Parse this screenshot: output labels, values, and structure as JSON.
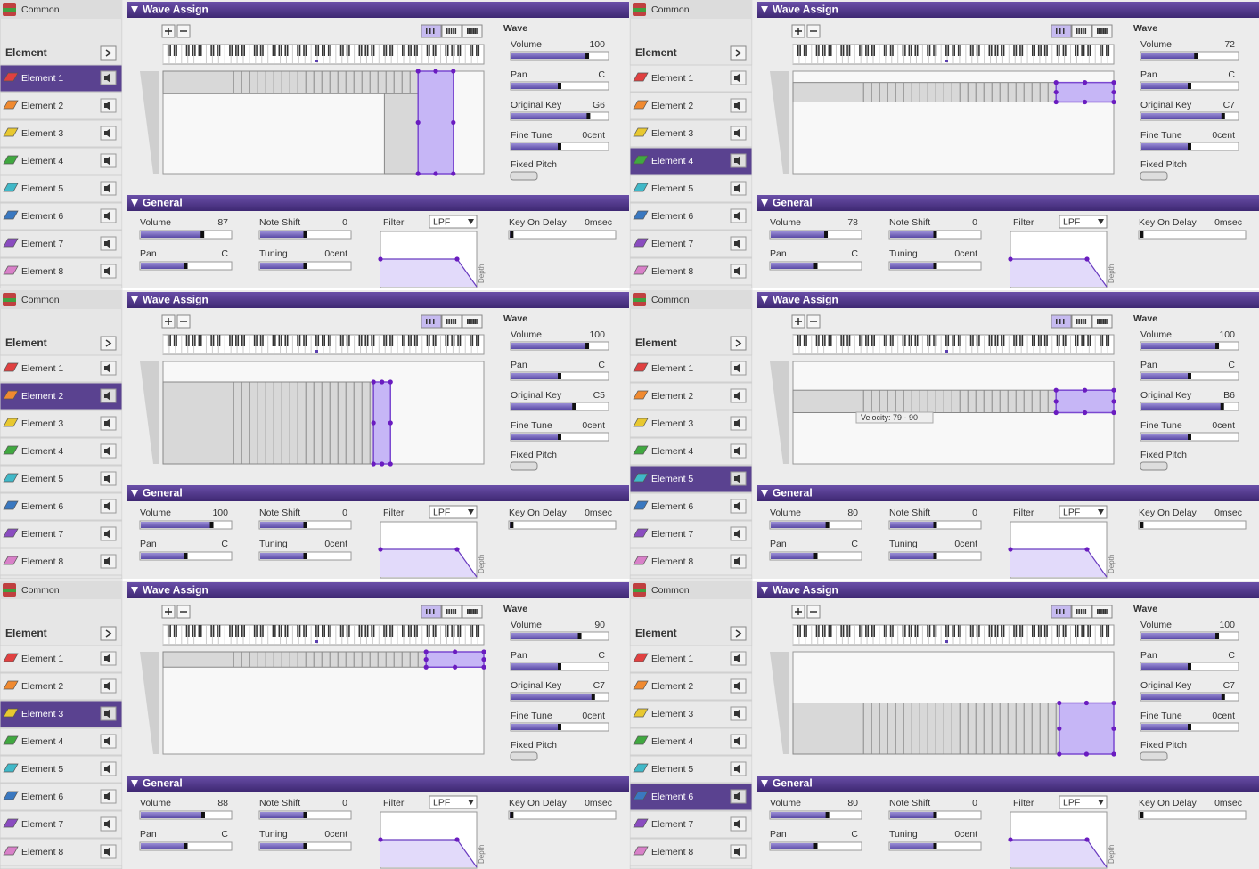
{
  "panels": [
    {
      "common": "Common",
      "element_header": "Element",
      "elements": [
        "Element 1",
        "Element 2",
        "Element 3",
        "Element 4",
        "Element 5",
        "Element 6",
        "Element 7",
        "Element 8"
      ],
      "selected": 0,
      "wave": {
        "title": "Wave Assign",
        "heading": "Wave",
        "volume_label": "Volume",
        "volume": 100,
        "pan_label": "Pan",
        "pan": "C",
        "key_label": "Original Key",
        "key": "G6",
        "fine_tune_label": "Fine Tune",
        "fine_tune": "0cent",
        "fixed_pitch_label": "Fixed Pitch"
      },
      "general": {
        "title": "General",
        "volume_label": "Volume",
        "volume": 87,
        "note_shift_label": "Note Shift",
        "note_shift": 0,
        "filter_label": "Filter",
        "filter": "LPF",
        "key_on_delay_label": "Key On Delay",
        "key_on_delay": "0msec",
        "pan_label": "Pan",
        "pan": "C",
        "tuning_label": "Tuning",
        "tuning": "0cent",
        "depth_label": "Depth"
      }
    },
    {
      "common": "Common",
      "element_header": "Element",
      "elements": [
        "Element 1",
        "Element 2",
        "Element 3",
        "Element 4",
        "Element 5",
        "Element 6",
        "Element 7",
        "Element 8"
      ],
      "selected": 3,
      "wave": {
        "title": "Wave Assign",
        "heading": "Wave",
        "volume_label": "Volume",
        "volume": 72,
        "pan_label": "Pan",
        "pan": "C",
        "key_label": "Original Key",
        "key": "C7",
        "fine_tune_label": "Fine Tune",
        "fine_tune": "0cent",
        "fixed_pitch_label": "Fixed Pitch"
      },
      "general": {
        "title": "General",
        "volume_label": "Volume",
        "volume": 78,
        "note_shift_label": "Note Shift",
        "note_shift": 0,
        "filter_label": "Filter",
        "filter": "LPF",
        "key_on_delay_label": "Key On Delay",
        "key_on_delay": "0msec",
        "pan_label": "Pan",
        "pan": "C",
        "tuning_label": "Tuning",
        "tuning": "0cent",
        "depth_label": "Depth"
      }
    },
    {
      "common": "Common",
      "element_header": "Element",
      "elements": [
        "Element 1",
        "Element 2",
        "Element 3",
        "Element 4",
        "Element 5",
        "Element 6",
        "Element 7",
        "Element 8"
      ],
      "selected": 1,
      "wave": {
        "title": "Wave Assign",
        "heading": "Wave",
        "volume_label": "Volume",
        "volume": 100,
        "pan_label": "Pan",
        "pan": "C",
        "key_label": "Original Key",
        "key": "C5",
        "fine_tune_label": "Fine Tune",
        "fine_tune": "0cent",
        "fixed_pitch_label": "Fixed Pitch"
      },
      "general": {
        "title": "General",
        "volume_label": "Volume",
        "volume": 100,
        "note_shift_label": "Note Shift",
        "note_shift": 0,
        "filter_label": "Filter",
        "filter": "LPF",
        "key_on_delay_label": "Key On Delay",
        "key_on_delay": "0msec",
        "pan_label": "Pan",
        "pan": "C",
        "tuning_label": "Tuning",
        "tuning": "0cent",
        "depth_label": "Depth"
      }
    },
    {
      "common": "Common",
      "element_header": "Element",
      "elements": [
        "Element 1",
        "Element 2",
        "Element 3",
        "Element 4",
        "Element 5",
        "Element 6",
        "Element 7",
        "Element 8"
      ],
      "selected": 4,
      "wave": {
        "title": "Wave Assign",
        "heading": "Wave",
        "volume_label": "Volume",
        "volume": 100,
        "pan_label": "Pan",
        "pan": "C",
        "key_label": "Original Key",
        "key": "B6",
        "fine_tune_label": "Fine Tune",
        "fine_tune": "0cent",
        "fixed_pitch_label": "Fixed Pitch",
        "tooltip": "Velocity: 79 - 90"
      },
      "general": {
        "title": "General",
        "volume_label": "Volume",
        "volume": 80,
        "note_shift_label": "Note Shift",
        "note_shift": 0,
        "filter_label": "Filter",
        "filter": "LPF",
        "key_on_delay_label": "Key On Delay",
        "key_on_delay": "0msec",
        "pan_label": "Pan",
        "pan": "C",
        "tuning_label": "Tuning",
        "tuning": "0cent",
        "depth_label": "Depth"
      }
    },
    {
      "common": "Common",
      "element_header": "Element",
      "elements": [
        "Element 1",
        "Element 2",
        "Element 3",
        "Element 4",
        "Element 5",
        "Element 6",
        "Element 7",
        "Element 8"
      ],
      "selected": 2,
      "wave": {
        "title": "Wave Assign",
        "heading": "Wave",
        "volume_label": "Volume",
        "volume": 90,
        "pan_label": "Pan",
        "pan": "C",
        "key_label": "Original Key",
        "key": "C7",
        "fine_tune_label": "Fine Tune",
        "fine_tune": "0cent",
        "fixed_pitch_label": "Fixed Pitch"
      },
      "general": {
        "title": "General",
        "volume_label": "Volume",
        "volume": 88,
        "note_shift_label": "Note Shift",
        "note_shift": 0,
        "filter_label": "Filter",
        "filter": "LPF",
        "key_on_delay_label": "Key On Delay",
        "key_on_delay": "0msec",
        "pan_label": "Pan",
        "pan": "C",
        "tuning_label": "Tuning",
        "tuning": "0cent",
        "depth_label": "Depth"
      }
    },
    {
      "common": "Common",
      "element_header": "Element",
      "elements": [
        "Element 1",
        "Element 2",
        "Element 3",
        "Element 4",
        "Element 5",
        "Element 6",
        "Element 7",
        "Element 8"
      ],
      "selected": 5,
      "wave": {
        "title": "Wave Assign",
        "heading": "Wave",
        "volume_label": "Volume",
        "volume": 100,
        "pan_label": "Pan",
        "pan": "C",
        "key_label": "Original Key",
        "key": "C7",
        "fine_tune_label": "Fine Tune",
        "fine_tune": "0cent",
        "fixed_pitch_label": "Fixed Pitch"
      },
      "general": {
        "title": "General",
        "volume_label": "Volume",
        "volume": 80,
        "note_shift_label": "Note Shift",
        "note_shift": 0,
        "filter_label": "Filter",
        "filter": "LPF",
        "key_on_delay_label": "Key On Delay",
        "key_on_delay": "0msec",
        "pan_label": "Pan",
        "pan": "C",
        "tuning_label": "Tuning",
        "tuning": "0cent",
        "depth_label": "Depth"
      }
    }
  ]
}
